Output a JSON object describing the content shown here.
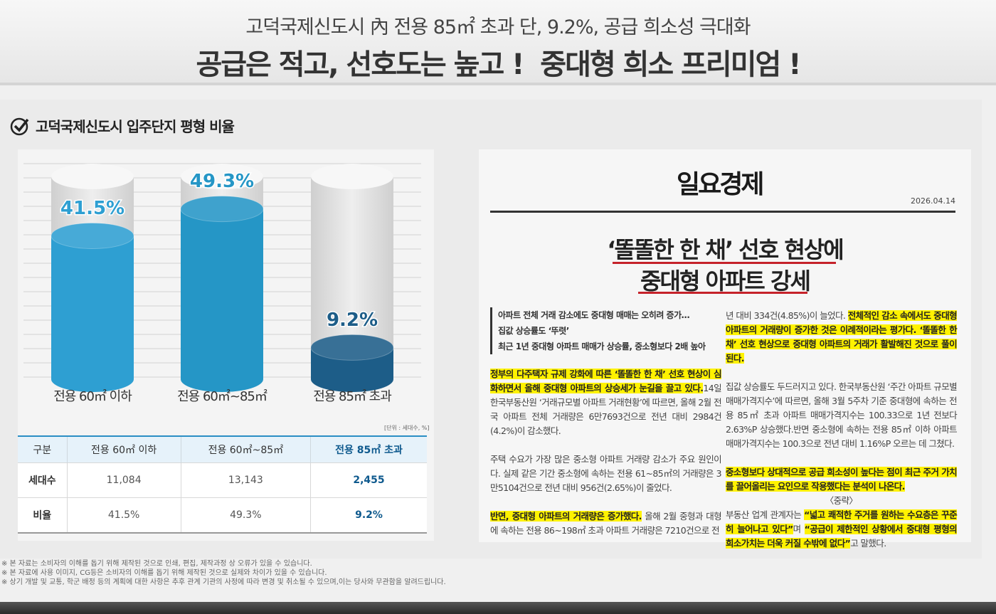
{
  "header": {
    "subtitle": "고덕국제신도시 內 전용 85㎡ 초과 단, 9.2%, 공급 희소성 극대화",
    "title": "공급은 적고, 선호도는 높고 !  중대형 희소 프리미엄 !"
  },
  "section_title": "고덕국제신도시 입주단지 평형 비율",
  "chart_data": {
    "type": "bar",
    "categories": [
      "전용 60㎡ 이하",
      "전용 60㎡~85㎡",
      "전용 85㎡ 초과"
    ],
    "values": [
      41.5,
      49.3,
      9.2
    ],
    "value_labels": [
      "41.5%",
      "49.3%",
      "9.2%"
    ],
    "colors": [
      "#2e9fd2",
      "#2596c6",
      "#1d5d88"
    ]
  },
  "unit_note": "[단위 : 세대수, %]",
  "table": {
    "header": [
      "구분",
      "전용 60㎡ 이하",
      "전용 60㎡~85㎡",
      "전용 85㎡ 초과"
    ],
    "rows": [
      [
        "세대수",
        "11,084",
        "13,143",
        "2,455"
      ],
      [
        "비율",
        "41.5%",
        "49.3%",
        "9.2%"
      ]
    ]
  },
  "article": {
    "logo": "일요경제",
    "date": "2026.04.14",
    "headline": [
      "‘똘똘한 한 채’ 선호 현상에",
      "중대형 아파트 강세"
    ],
    "summary": [
      "아파트 전체 거래 감소에도 중대형 매매는 오히려 증가…",
      "집값 상승률도 ‘뚜렷’",
      "최근 1년 중대형 아파트 매매가 상승률, 중소형보다 2배 높아"
    ],
    "columns": [
      [
        [
          {
            "text": "정부의 다주택자 규제 강화에 따른 ‘똘똘한 한 채’ 선호 현상이 심화하면서 올해 중대형 아파트의 상승세가 눈길을 끌고 있다.",
            "highlight": true
          },
          {
            "text": "14일 한국부동산원 ‘거래규모별 아파트 거래현황’에 따르면, 올해 2월 전국 아파트 전체 거래량은 6만7693건으로 전년 대비 2984건(4.2%)이 감소했다.",
            "highlight": false
          }
        ],
        [
          {
            "text": "주택 수요가 가장 많은 중소형 아파트 거래량 감소가 주요 원인이다. 실제 같은 기간 중소형에 속하는 전용 61~85㎡의 거래량은 3만5104건으로 전년 대비 956건(2.65%)이 줄었다.",
            "highlight": false
          }
        ],
        [
          {
            "text": "반면, 중대형 아파트의 거래량은 증가했다.",
            "highlight": true
          },
          {
            "text": " 올해 2월 중형과 대형에 속하는 전용 86~198㎡ 초과 아파트 거래량은 7210건으로 전",
            "highlight": false
          }
        ]
      ],
      [
        [
          {
            "text": "년 대비 334건(4.85%)이 늘었다. ",
            "highlight": false
          },
          {
            "text": "전체적인 감소 속에서도 중대형 아파트의 거래량이 증가한 것은 이례적이라는 평가다. ‘똘똘한 한 채’ 선호 현상으로 중대형 아파트의 거래가 활발해진 것으로 풀이된다.",
            "highlight": true
          }
        ],
        [
          {
            "text": "집값 상승률도 두드러지고 있다. 한국부동산원 ‘주간 아파트 규모별 매매가격지수’에 따르면, 올해 3월 5주차 기준 중대형에 속하는 전용 85㎡ 초과 아파트 매매가격지수는 100.33으로 1년 전보다 2.63%P 상승했다.반면 중소형에 속하는 전용 85㎡ 이하 아파트 매매가격지수는 100.3으로 전년 대비 1.16%P 오르는 데 그쳤다.",
            "highlight": false
          }
        ],
        [
          {
            "text": "중소형보다 상대적으로 공급 희소성이 높다는 점이 최근 주거 가치를 끌어올리는 요인으로 작용했다는 분석이 나온다.",
            "highlight": true
          }
        ],
        [
          {
            "text": "〈중략〉",
            "highlight": false
          }
        ],
        [
          {
            "text": "부동산 업계 관계자는 ",
            "highlight": false
          },
          {
            "text": "“넓고 쾌적한 주거를 원하는 수요층은 꾸준히 늘어나고 있다”",
            "highlight": true
          },
          {
            "text": "며 ",
            "highlight": false
          },
          {
            "text": "“공급이 제한적인 상황에서 중대형 평형의 희소가치는 더욱 커질 수밖에 없다”",
            "highlight": true
          },
          {
            "text": "고 말했다.",
            "highlight": false
          }
        ]
      ]
    ]
  },
  "footnotes": [
    "※ 본 자료는 소비자의 이해를 돕기 위해 제작된 것으로 인쇄, 편집, 제작과정 상 오류가 있을 수 있습니다.",
    "※ 본 자료에 사용 이미지, CG등은 소비자의 이해를 돕기 위해 제작된 것으로 실제와 차이가 있을 수 있습니다.",
    "※ 상기 개발 및 교통, 학군 배정 등의 계획에 대한 사항은 추후 관계 기관의 사정에 따라 변경 및 취소될 수 있으며,이는 당사와 무관함을 알려드립니다."
  ]
}
